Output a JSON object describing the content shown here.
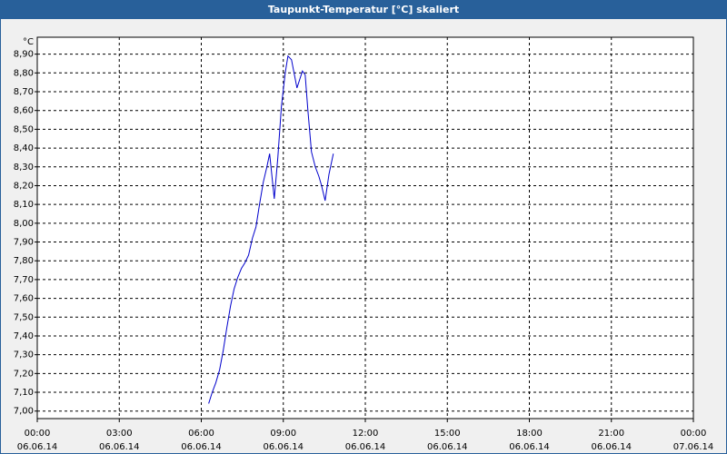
{
  "chart_data": {
    "type": "line",
    "title": "Taupunkt-Temperatur [°C] skaliert",
    "y_label": "°C",
    "x": [
      6.27,
      6.4,
      6.53,
      6.67,
      6.8,
      6.93,
      7.07,
      7.2,
      7.33,
      7.47,
      7.6,
      7.73,
      7.87,
      8.0,
      8.13,
      8.27,
      8.4,
      8.5,
      8.67,
      8.8,
      8.93,
      9.07,
      9.17,
      9.3,
      9.5,
      9.7,
      9.8,
      9.9,
      10.03,
      10.17,
      10.3,
      10.4,
      10.53,
      10.67,
      10.83
    ],
    "series": [
      {
        "color": "#0000cc",
        "values": [
          7.04,
          7.1,
          7.15,
          7.22,
          7.32,
          7.44,
          7.56,
          7.65,
          7.71,
          7.76,
          7.79,
          7.83,
          7.92,
          7.98,
          8.1,
          8.22,
          8.3,
          8.37,
          8.13,
          8.35,
          8.62,
          8.8,
          8.89,
          8.87,
          8.72,
          8.81,
          8.79,
          8.6,
          8.38,
          8.3,
          8.25,
          8.2,
          8.12,
          8.26,
          8.37
        ]
      }
    ],
    "xlim": [
      0,
      24
    ],
    "ylim": [
      6.96,
      8.99
    ],
    "xticks": [
      {
        "value": 0,
        "label": "00:00\n06.06.14"
      },
      {
        "value": 3,
        "label": "03:00\n06.06.14"
      },
      {
        "value": 6,
        "label": "06:00\n06.06.14"
      },
      {
        "value": 9,
        "label": "09:00\n06.06.14"
      },
      {
        "value": 12,
        "label": "12:00\n06.06.14"
      },
      {
        "value": 15,
        "label": "15:00\n06.06.14"
      },
      {
        "value": 18,
        "label": "18:00\n06.06.14"
      },
      {
        "value": 21,
        "label": "21:00\n06.06.14"
      },
      {
        "value": 24,
        "label": "00:00\n07.06.14"
      }
    ],
    "yticks": [
      {
        "value": 7.0,
        "label": "7,00"
      },
      {
        "value": 7.1,
        "label": "7,10"
      },
      {
        "value": 7.2,
        "label": "7,20"
      },
      {
        "value": 7.3,
        "label": "7,30"
      },
      {
        "value": 7.4,
        "label": "7,40"
      },
      {
        "value": 7.5,
        "label": "7,50"
      },
      {
        "value": 7.6,
        "label": "7,60"
      },
      {
        "value": 7.7,
        "label": "7,70"
      },
      {
        "value": 7.8,
        "label": "7,80"
      },
      {
        "value": 7.9,
        "label": "7,90"
      },
      {
        "value": 8.0,
        "label": "8,00"
      },
      {
        "value": 8.1,
        "label": "8,10"
      },
      {
        "value": 8.2,
        "label": "8,20"
      },
      {
        "value": 8.3,
        "label": "8,30"
      },
      {
        "value": 8.4,
        "label": "8,40"
      },
      {
        "value": 8.5,
        "label": "8,50"
      },
      {
        "value": 8.6,
        "label": "8,60"
      },
      {
        "value": 8.7,
        "label": "8,70"
      },
      {
        "value": 8.8,
        "label": "8,80"
      },
      {
        "value": 8.9,
        "label": "8,90"
      }
    ],
    "grid": true
  }
}
